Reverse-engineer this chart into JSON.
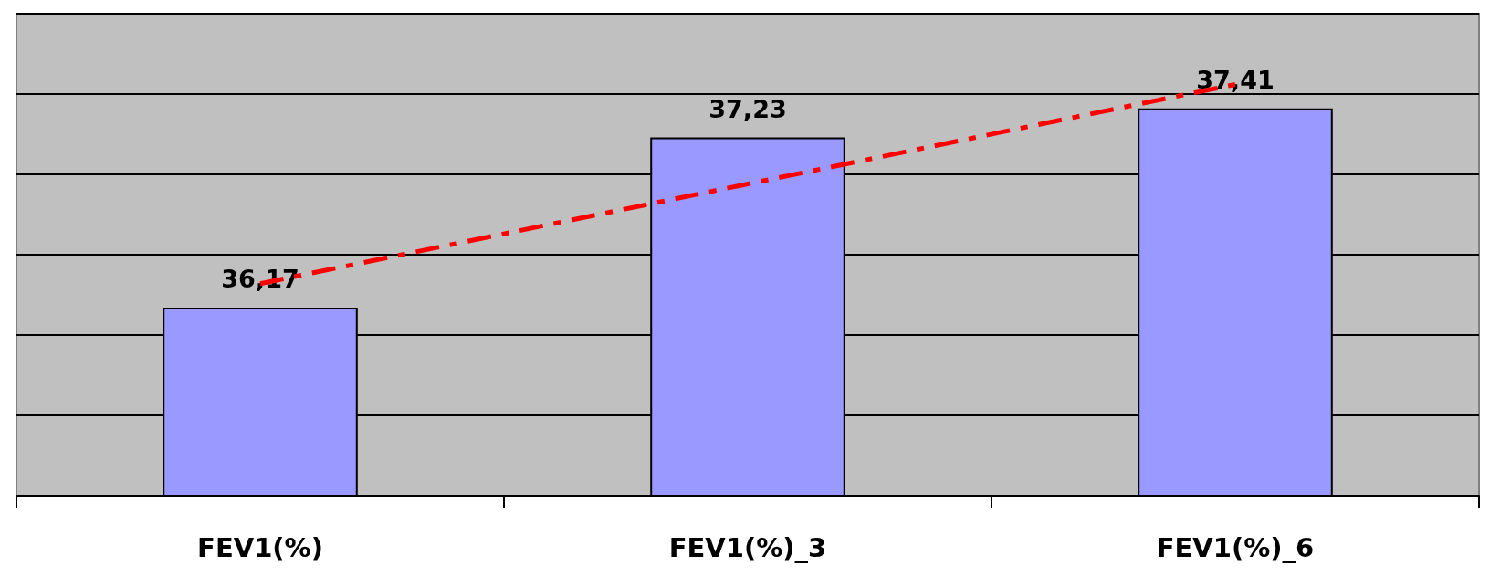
{
  "chart_data": {
    "type": "bar",
    "categories": [
      "FEV1(%)",
      "FEV1(%)_3",
      "FEV1(%)_6"
    ],
    "series": [
      {
        "color": "#9999ff",
        "values": [
          36.17,
          37.23,
          37.41
        ],
        "value_labels": [
          "36,17",
          "37,23",
          "37,41"
        ]
      },
      {
        "type": "line",
        "color": "#ff0000",
        "x": [
          "FEV1(%)",
          "FEV1(%)_6"
        ],
        "values": [
          36.32,
          37.56
        ],
        "line_style": "dashed",
        "marker": "none"
      }
    ],
    "ylim": [
      35,
      38
    ],
    "yticks": [
      {
        "value": 35,
        "label": null
      },
      {
        "value": 35.5,
        "label": null
      },
      {
        "value": 36,
        "label": null
      },
      {
        "value": 36.5,
        "label": null
      },
      {
        "value": 37,
        "label": null
      },
      {
        "value": 37.5,
        "label": null
      },
      {
        "value": 38,
        "label": null
      }
    ],
    "tick_labels": "x",
    "grid": "y"
  }
}
